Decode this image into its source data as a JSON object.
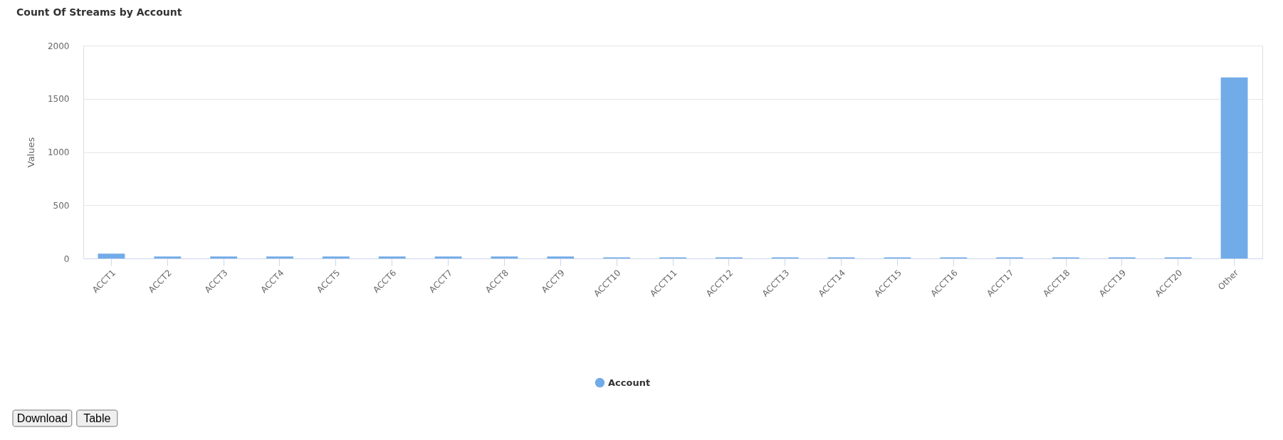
{
  "chart_data": {
    "type": "bar",
    "title": "Count Of Streams by Account",
    "ylabel": "Values",
    "categories": [
      "ACCT1",
      "ACCT2",
      "ACCT3",
      "ACCT4",
      "ACCT5",
      "ACCT6",
      "ACCT7",
      "ACCT8",
      "ACCT9",
      "ACCT10",
      "ACCT11",
      "ACCT12",
      "ACCT13",
      "ACCT14",
      "ACCT15",
      "ACCT16",
      "ACCT17",
      "ACCT18",
      "ACCT19",
      "ACCT20",
      "Other"
    ],
    "series": [
      {
        "name": "Account",
        "color": "#71abe8",
        "values": [
          45,
          18,
          18,
          18,
          18,
          18,
          18,
          18,
          18,
          10,
          10,
          10,
          10,
          10,
          10,
          10,
          10,
          10,
          10,
          10,
          1700
        ]
      }
    ],
    "ylim": [
      0,
      2000
    ],
    "yticks": [
      0,
      500,
      1000,
      1500,
      2000
    ],
    "grid": "y",
    "legend": "bottom",
    "annotations": [
      "Download",
      "Table"
    ]
  }
}
